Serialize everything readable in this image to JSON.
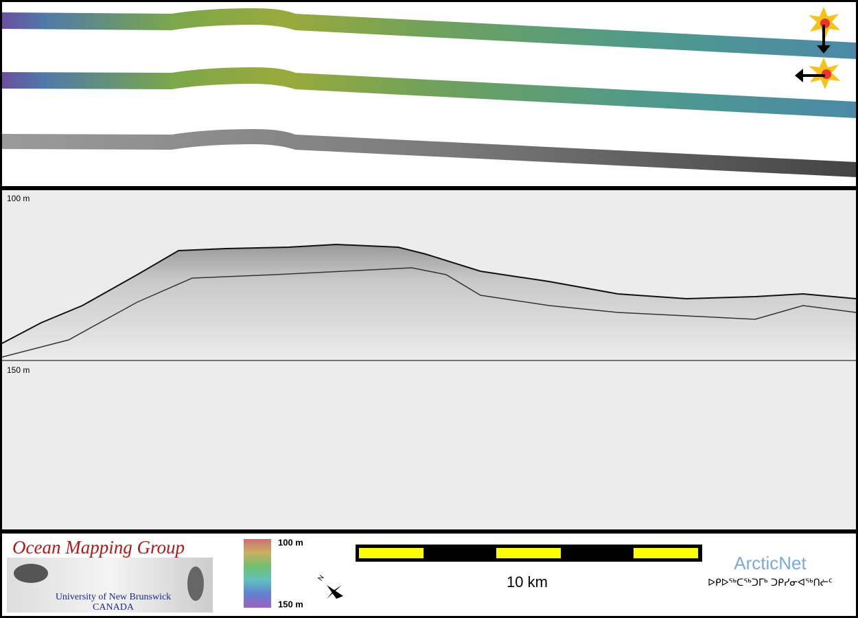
{
  "profile": {
    "top_depth_label": "100 m",
    "bottom_depth_label": "150 m"
  },
  "logo": {
    "title": "Ocean Mapping Group",
    "university": "University of New Brunswick",
    "country": "CANADA"
  },
  "colorbar": {
    "top_label": "100 m",
    "bottom_label": "150 m"
  },
  "scalebar": {
    "label": "10 km"
  },
  "partner": {
    "name": "ArcticNet",
    "syllabics": "ᐅᑭᐅᖅᑕᖅᑐᒥᒃ ᑐᑭᓯᓂᐊᖅᑎᓖᑦ"
  }
}
